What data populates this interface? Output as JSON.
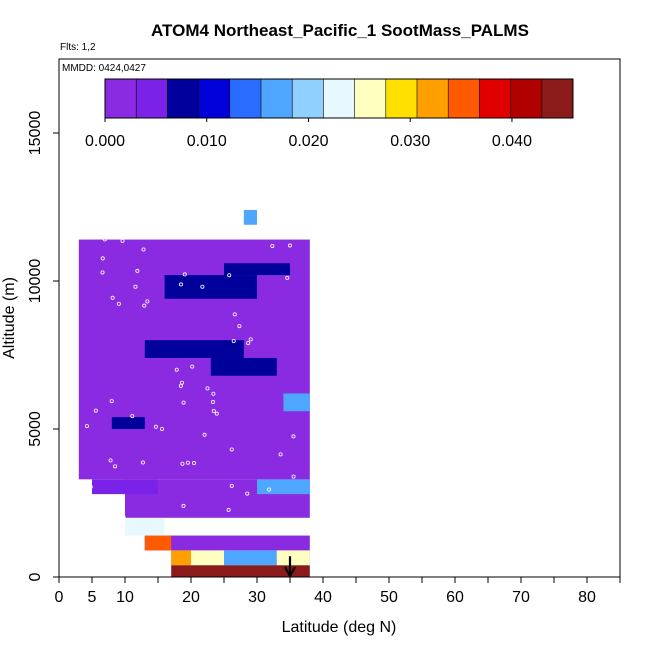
{
  "chart_data": {
    "type": "heatmap",
    "title": "ATOM4 Northeast_Pacific_1 SootMass_PALMS",
    "flights_label": "Flts: 1,2",
    "dates_label": "MMDD: 0424,0427",
    "xlabel": "Latitude (deg N)",
    "ylabel": "Altitude (m)",
    "xlim": [
      0,
      85
    ],
    "ylim": [
      0,
      17500
    ],
    "x_ticks": [
      0,
      5,
      10,
      20,
      30,
      40,
      50,
      60,
      70,
      80
    ],
    "y_ticks": [
      0,
      5000,
      10000,
      15000
    ],
    "y_tick_labels": [
      "0",
      "5000",
      "10000",
      "15000"
    ],
    "colorbar": {
      "range": [
        0,
        0.046
      ],
      "ticks": [
        0.0,
        0.01,
        0.02,
        0.03,
        0.04
      ],
      "tick_labels": [
        "0.000",
        "0.010",
        "0.020",
        "0.030",
        "0.040"
      ],
      "colors": [
        "#8a2be2",
        "#7b22e8",
        "#00009a",
        "#0000d8",
        "#2a6cff",
        "#4fa6ff",
        "#8fd0ff",
        "#e8f8ff",
        "#ffffc0",
        "#ffe000",
        "#ffa000",
        "#ff5a00",
        "#e00000",
        "#b00000",
        "#8b1a1a"
      ]
    },
    "cells": [
      {
        "lat": [
          17,
          38
        ],
        "alt": [
          0,
          400
        ],
        "value": 0.045
      },
      {
        "lat": [
          17,
          38
        ],
        "alt": [
          400,
          900
        ],
        "value": 0.016
      },
      {
        "lat": [
          17,
          20
        ],
        "alt": [
          400,
          900
        ],
        "value": 0.033
      },
      {
        "lat": [
          20,
          25
        ],
        "alt": [
          400,
          900
        ],
        "value": 0.027
      },
      {
        "lat": [
          33,
          38
        ],
        "alt": [
          400,
          900
        ],
        "value": 0.026
      },
      {
        "lat": [
          13,
          38
        ],
        "alt": [
          900,
          1400
        ],
        "value": 0.003
      },
      {
        "lat": [
          13,
          17
        ],
        "alt": [
          900,
          1400
        ],
        "value": 0.035
      },
      {
        "lat": [
          10,
          16
        ],
        "alt": [
          1400,
          2000
        ],
        "value": 0.023
      },
      {
        "lat": [
          10,
          38
        ],
        "alt": [
          2000,
          3300
        ],
        "value": 0.001
      },
      {
        "lat": [
          5,
          15
        ],
        "alt": [
          2800,
          3300
        ],
        "value": 0.006
      },
      {
        "lat": [
          30,
          38
        ],
        "alt": [
          2800,
          3300
        ],
        "value": 0.016
      },
      {
        "lat": [
          3,
          38
        ],
        "alt": [
          3300,
          11400
        ],
        "value": 0.001
      },
      {
        "lat": [
          8,
          13
        ],
        "alt": [
          5000,
          5400
        ],
        "value": 0.007
      },
      {
        "lat": [
          23,
          33
        ],
        "alt": [
          6800,
          7400
        ],
        "value": 0.009
      },
      {
        "lat": [
          13,
          28
        ],
        "alt": [
          7400,
          8000
        ],
        "value": 0.007
      },
      {
        "lat": [
          16,
          30
        ],
        "alt": [
          9400,
          10200
        ],
        "value": 0.008
      },
      {
        "lat": [
          25,
          35
        ],
        "alt": [
          10200,
          10600
        ],
        "value": 0.008
      },
      {
        "lat": [
          34,
          38
        ],
        "alt": [
          5600,
          6200
        ],
        "value": 0.016
      },
      {
        "lat": [
          28,
          30
        ],
        "alt": [
          11900,
          12400
        ],
        "value": 0.018
      }
    ],
    "arrow_lat": 35
  }
}
